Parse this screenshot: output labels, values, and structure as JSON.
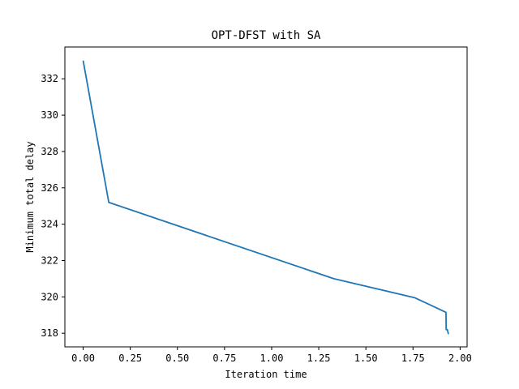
{
  "chart_data": {
    "type": "line",
    "title": "OPT-DFST with SA",
    "xlabel": "Iteration time",
    "ylabel": "Minimum total delay",
    "xlim": [
      -0.097,
      2.037
    ],
    "ylim": [
      317.25,
      333.75
    ],
    "xticks": [
      0.0,
      0.25,
      0.5,
      0.75,
      1.0,
      1.25,
      1.5,
      1.75,
      2.0
    ],
    "xtick_labels": [
      "0.00",
      "0.25",
      "0.50",
      "0.75",
      "1.00",
      "1.25",
      "1.50",
      "1.75",
      "2.00"
    ],
    "yticks": [
      318,
      320,
      322,
      324,
      326,
      328,
      330,
      332
    ],
    "ytick_labels": [
      "318",
      "320",
      "322",
      "324",
      "326",
      "328",
      "330",
      "332"
    ],
    "grid": false,
    "series": [
      {
        "name": "SA",
        "color": "#1f77b4",
        "x": [
          0.0,
          0.136,
          1.33,
          1.76,
          1.925,
          1.926,
          1.932,
          1.938
        ],
        "y": [
          333.0,
          325.2,
          321.0,
          319.95,
          319.15,
          318.2,
          318.2,
          317.95
        ]
      }
    ]
  }
}
